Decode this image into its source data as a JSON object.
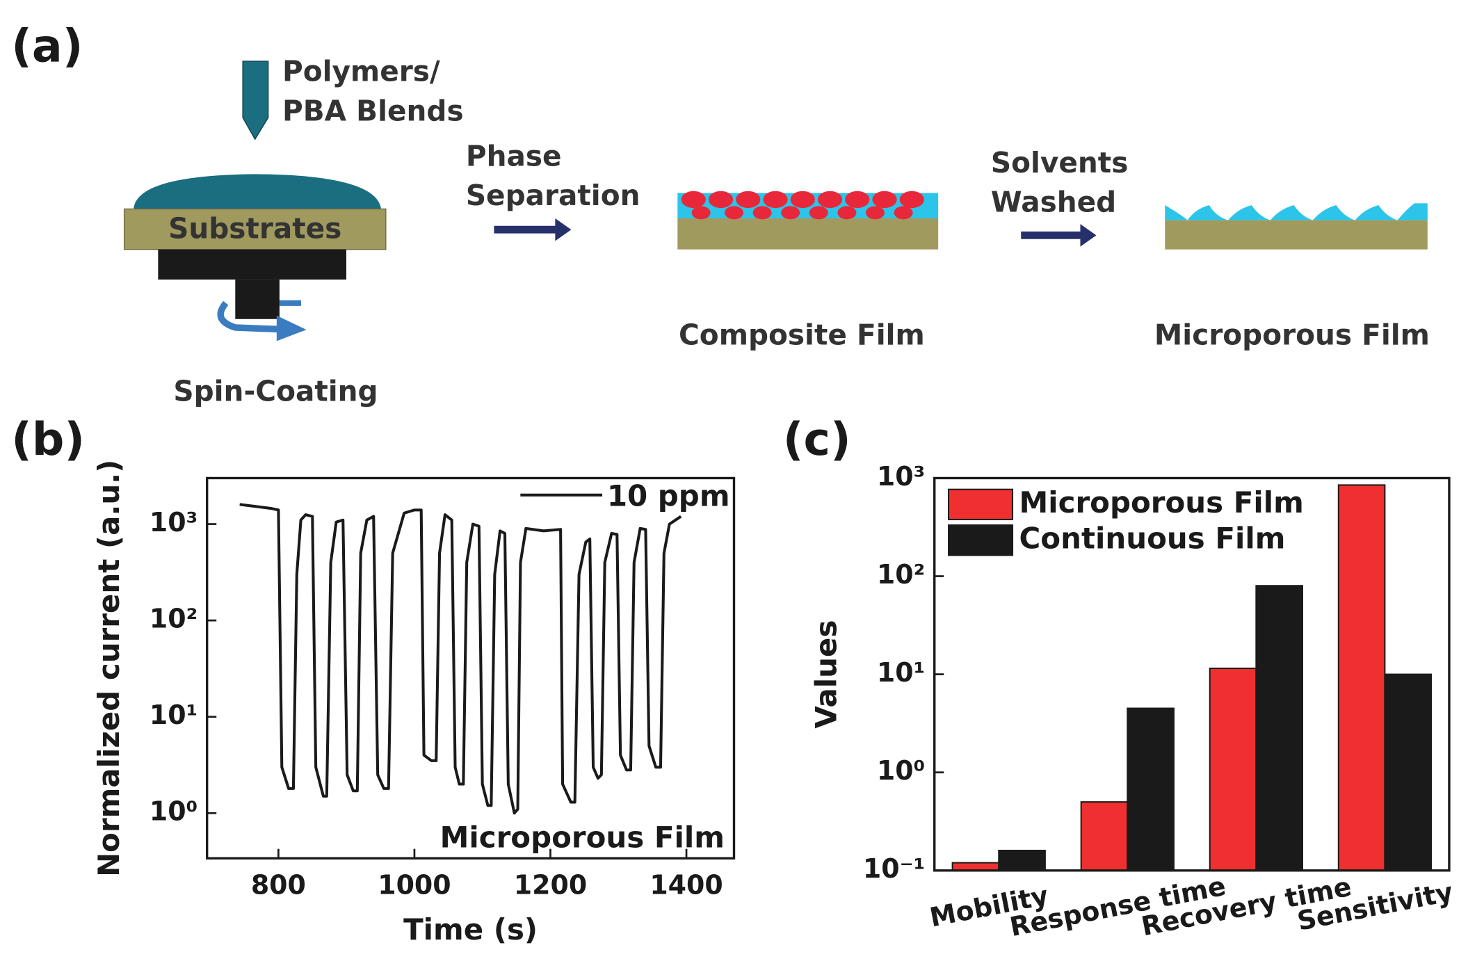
{
  "panel_labels": [
    "(a)",
    "(b)",
    "(c)"
  ],
  "diagram": {
    "dispenser_label": [
      "Polymers/",
      "PBA Blends"
    ],
    "substrate_label": "Substrates",
    "step1": "Spin-Coating",
    "arrow1": [
      "Phase",
      "Separation"
    ],
    "step2": "Composite Film",
    "arrow2": [
      "Solvents",
      "Washed"
    ],
    "step3": "Microporous Film"
  },
  "chart_data": [
    {
      "type": "line",
      "xlabel": "Time (s)",
      "ylabel": "Normalized current (a.u.)",
      "x": [
        743,
        790,
        800,
        805,
        815,
        822,
        827,
        833,
        840,
        850,
        855,
        866,
        871,
        877,
        885,
        895,
        901,
        910,
        916,
        921,
        930,
        940,
        946,
        955,
        962,
        968,
        985,
        1000,
        1010,
        1014,
        1025,
        1032,
        1037,
        1045,
        1055,
        1060,
        1066,
        1072,
        1077,
        1086,
        1095,
        1100,
        1108,
        1113,
        1118,
        1126,
        1133,
        1138,
        1147,
        1152,
        1156,
        1164,
        1190,
        1215,
        1218,
        1230,
        1236,
        1242,
        1252,
        1258,
        1263,
        1270,
        1275,
        1280,
        1290,
        1298,
        1303,
        1312,
        1318,
        1323,
        1332,
        1340,
        1345,
        1355,
        1362,
        1367,
        1375,
        1392
      ],
      "series": [
        {
          "color": "#1a1a1a",
          "values": [
            1600,
            1450,
            1400,
            3,
            1.8,
            1.8,
            300,
            1100,
            1250,
            1200,
            3,
            1.5,
            1.5,
            400,
            1050,
            1100,
            2.5,
            1.7,
            1.7,
            500,
            1100,
            1200,
            2.5,
            1.8,
            1.8,
            500,
            1300,
            1400,
            1400,
            4,
            3.5,
            3.5,
            500,
            1250,
            1100,
            3,
            2,
            2,
            400,
            1000,
            950,
            2,
            1.2,
            1.2,
            300,
            850,
            800,
            2,
            1.0,
            1.1,
            400,
            900,
            850,
            880,
            2,
            1.3,
            1.3,
            300,
            650,
            700,
            3,
            2.3,
            2.5,
            400,
            800,
            780,
            4,
            2.8,
            2.8,
            400,
            900,
            880,
            5,
            3,
            3,
            500,
            1000,
            1200
          ]
        }
      ],
      "xlim": [
        695,
        1470
      ],
      "xticks": [
        800,
        1000,
        1200,
        1400
      ],
      "ylim": [
        0.34,
        3000
      ],
      "yticks": [
        {
          "value": 1,
          "label": "10⁰"
        },
        {
          "value": 10,
          "label": "10¹"
        },
        {
          "value": 100,
          "label": "10²"
        },
        {
          "value": 1000,
          "label": "10³"
        }
      ],
      "log_y": true,
      "annotations": [
        "10 ppm",
        "Microporous Film"
      ]
    },
    {
      "type": "bar",
      "ylabel": "Values",
      "categories": [
        "Mobility",
        "Response time",
        "Recovery time",
        "Sensitivity"
      ],
      "series": [
        {
          "name": "Microporous Film",
          "color": "#f03030",
          "values": [
            0.12,
            0.5,
            11.5,
            850
          ]
        },
        {
          "name": "Continuous Film",
          "color": "#1a1a1a",
          "values": [
            0.16,
            4.5,
            80,
            10
          ]
        }
      ],
      "ylim": [
        0.1,
        1000
      ],
      "yticks": [
        {
          "value": 0.1,
          "label": "10⁻¹"
        },
        {
          "value": 1,
          "label": "10⁰"
        },
        {
          "value": 10,
          "label": "10¹"
        },
        {
          "value": 100,
          "label": "10²"
        },
        {
          "value": 1000,
          "label": "10³"
        }
      ],
      "log_y": true,
      "legend": "upper left"
    }
  ]
}
